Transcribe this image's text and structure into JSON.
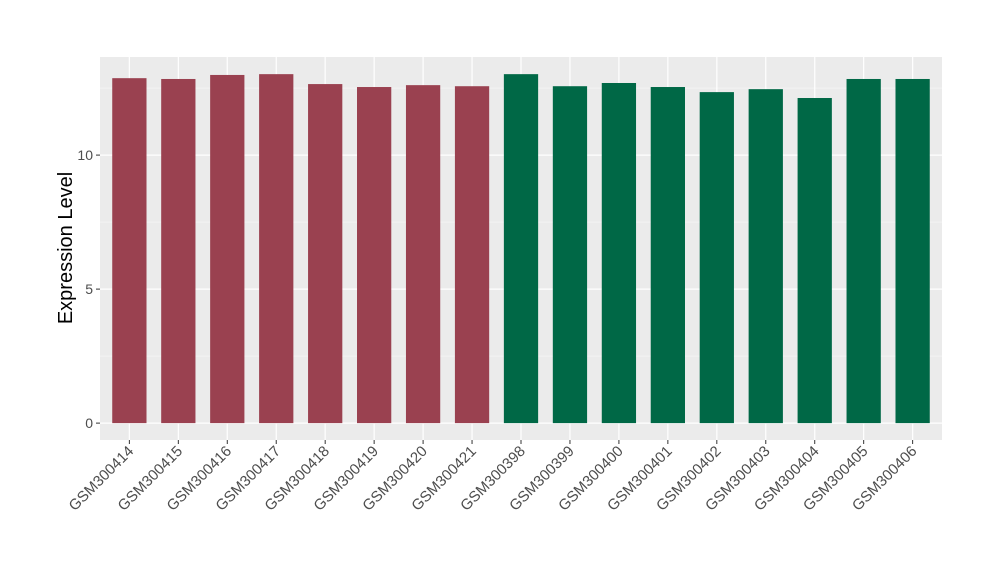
{
  "chart_data": {
    "type": "bar",
    "title": "",
    "xlabel": "",
    "ylabel": "Expression Level",
    "ylim": [
      -0.63,
      13.66
    ],
    "yticks": [
      0,
      5,
      10
    ],
    "grid": true,
    "legend": "none",
    "categories": [
      "GSM300414",
      "GSM300415",
      "GSM300416",
      "GSM300417",
      "GSM300418",
      "GSM300419",
      "GSM300420",
      "GSM300421",
      "GSM300398",
      "GSM300399",
      "GSM300400",
      "GSM300401",
      "GSM300402",
      "GSM300403",
      "GSM300404",
      "GSM300405",
      "GSM300406"
    ],
    "values": [
      12.87,
      12.84,
      12.99,
      13.02,
      12.65,
      12.54,
      12.61,
      12.57,
      13.02,
      12.57,
      12.69,
      12.54,
      12.35,
      12.46,
      12.13,
      12.84,
      12.84
    ],
    "groups": [
      0,
      0,
      0,
      0,
      0,
      0,
      0,
      0,
      1,
      1,
      1,
      1,
      1,
      1,
      1,
      1,
      1
    ],
    "colors": [
      "#9A4150",
      "#006846"
    ],
    "panel_color": "#EBEBEB"
  }
}
